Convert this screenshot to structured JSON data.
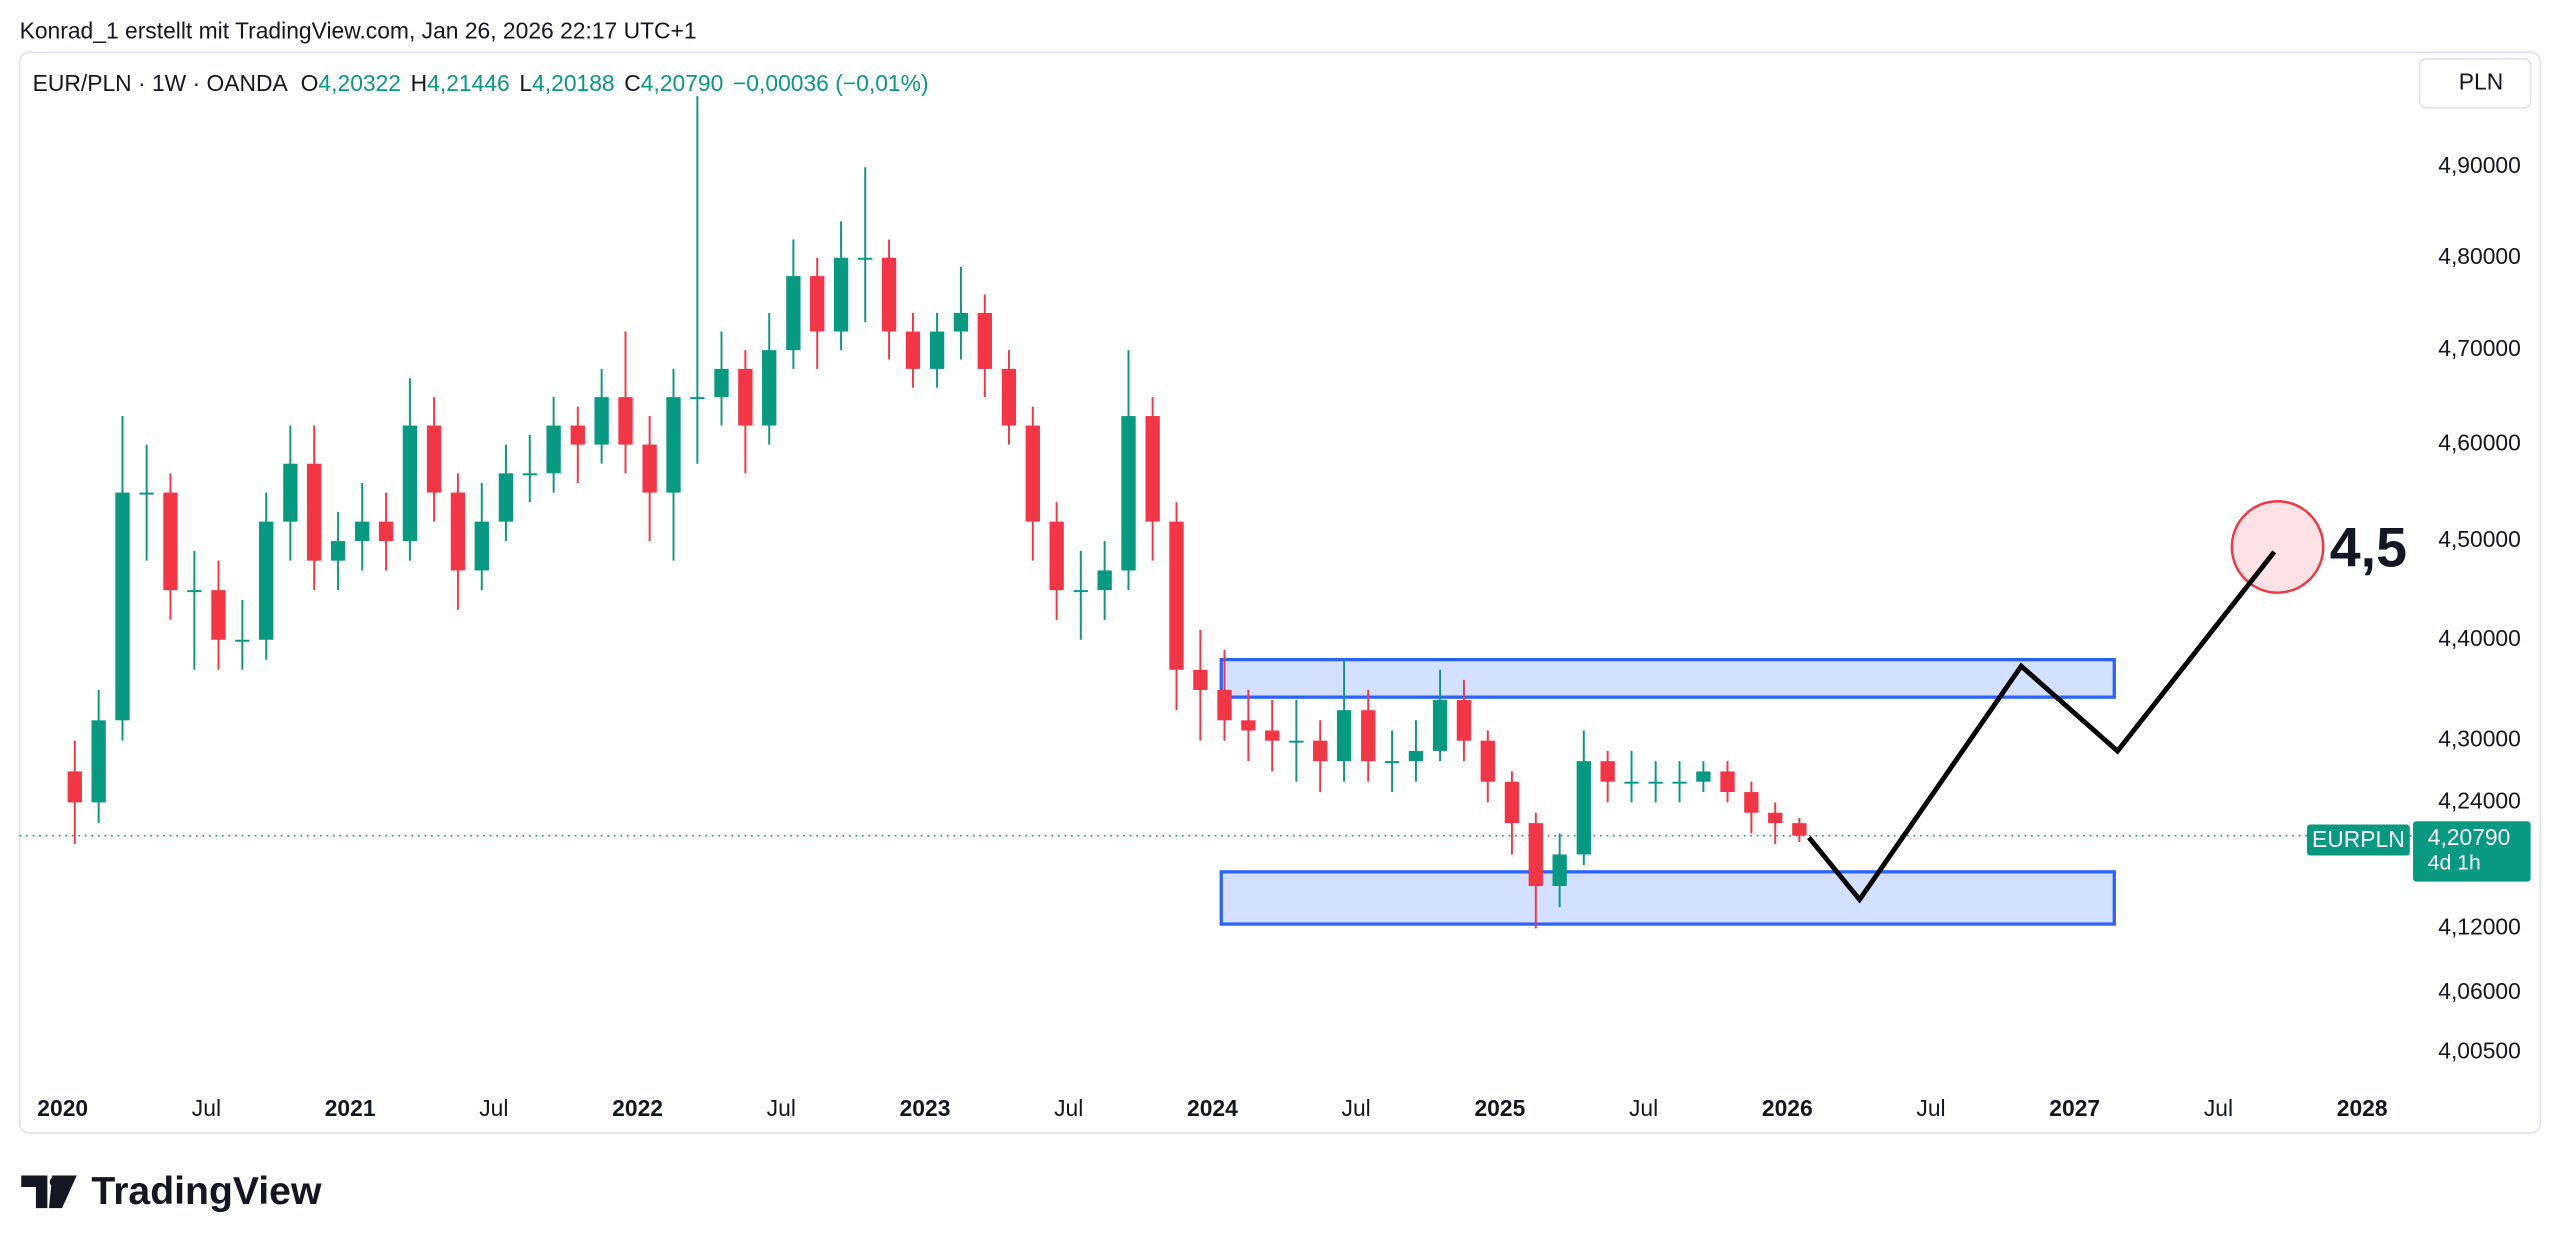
{
  "header": {
    "attribution": "Konrad_1 erstellt mit TradingView.com, Jan 26, 2026 22:17 UTC+1"
  },
  "legend": {
    "symbol": "EUR/PLN · 1W · OANDA",
    "open_label": "O",
    "open": "4,20322",
    "high_label": "H",
    "high": "4,21446",
    "low_label": "L",
    "low": "4,20188",
    "close_label": "C",
    "close": "4,20790",
    "change": "−0,00036 (−0,01%)"
  },
  "currency_button": "PLN",
  "price_tag": {
    "symbol": "EURPLN",
    "price": "4,20790",
    "countdown": "4d 1h"
  },
  "chart_data": {
    "type": "candlestick",
    "log_scale": true,
    "up_color": "#089981",
    "down_color": "#f23645",
    "annotation": "4,5",
    "last_price": 4.2079,
    "xlim": [
      2019.85,
      2028.16
    ],
    "xticks": [
      2020,
      {
        "value": 2020.5,
        "label": "Jul"
      },
      2021,
      {
        "value": 2021.5,
        "label": "Jul"
      },
      2022,
      {
        "value": 2022.5,
        "label": "Jul"
      },
      2023,
      {
        "value": 2023.5,
        "label": "Jul"
      },
      2024,
      {
        "value": 2024.5,
        "label": "Jul"
      },
      2025,
      {
        "value": 2025.5,
        "label": "Jul"
      },
      2026,
      {
        "value": 2026.5,
        "label": "Jul"
      },
      2027,
      {
        "value": 2027.5,
        "label": "Jul"
      },
      2028
    ],
    "ylim": [
      3.975,
      5.03
    ],
    "yticks": [
      {
        "value": 4.9,
        "label": "4,90000"
      },
      {
        "value": 4.8,
        "label": "4,80000"
      },
      {
        "value": 4.7,
        "label": "4,70000"
      },
      {
        "value": 4.6,
        "label": "4,60000"
      },
      {
        "value": 4.5,
        "label": "4,50000"
      },
      {
        "value": 4.4,
        "label": "4,40000"
      },
      {
        "value": 4.3,
        "label": "4,30000"
      },
      {
        "value": 4.24,
        "label": "4,24000"
      },
      {
        "value": 4.12,
        "label": "4,12000"
      },
      {
        "value": 4.06,
        "label": "4,06000"
      },
      {
        "value": 4.005,
        "label": "4,00500"
      }
    ],
    "x": [
      2020.042,
      2020.125,
      2020.208,
      2020.292,
      2020.375,
      2020.458,
      2020.542,
      2020.625,
      2020.708,
      2020.792,
      2020.875,
      2020.958,
      2021.042,
      2021.125,
      2021.208,
      2021.292,
      2021.375,
      2021.458,
      2021.542,
      2021.625,
      2021.708,
      2021.792,
      2021.875,
      2021.958,
      2022.042,
      2022.125,
      2022.208,
      2022.292,
      2022.375,
      2022.458,
      2022.542,
      2022.625,
      2022.708,
      2022.792,
      2022.875,
      2022.958,
      2023.042,
      2023.125,
      2023.208,
      2023.292,
      2023.375,
      2023.458,
      2023.542,
      2023.625,
      2023.708,
      2023.792,
      2023.875,
      2023.958,
      2024.042,
      2024.125,
      2024.208,
      2024.292,
      2024.375,
      2024.458,
      2024.542,
      2024.625,
      2024.708,
      2024.792,
      2024.875,
      2024.958,
      2025.042,
      2025.125,
      2025.208,
      2025.292,
      2025.375,
      2025.458,
      2025.542,
      2025.625,
      2025.708,
      2025.792,
      2025.875,
      2025.958,
      2026.042
    ],
    "open": [
      4.27,
      4.24,
      4.32,
      4.55,
      4.55,
      4.45,
      4.45,
      4.4,
      4.4,
      4.52,
      4.58,
      4.48,
      4.5,
      4.52,
      4.5,
      4.62,
      4.55,
      4.47,
      4.52,
      4.57,
      4.57,
      4.62,
      4.6,
      4.65,
      4.6,
      4.55,
      4.65,
      4.65,
      4.68,
      4.62,
      4.7,
      4.78,
      4.72,
      4.8,
      4.8,
      4.72,
      4.68,
      4.72,
      4.74,
      4.68,
      4.62,
      4.52,
      4.45,
      4.45,
      4.47,
      4.63,
      4.52,
      4.37,
      4.35,
      4.32,
      4.31,
      4.3,
      4.3,
      4.28,
      4.33,
      4.28,
      4.28,
      4.29,
      4.34,
      4.3,
      4.26,
      4.22,
      4.16,
      4.19,
      4.28,
      4.26,
      4.26,
      4.26,
      4.26,
      4.27,
      4.25,
      4.23,
      4.22
    ],
    "high": [
      4.3,
      4.35,
      4.63,
      4.6,
      4.57,
      4.49,
      4.48,
      4.44,
      4.55,
      4.62,
      4.62,
      4.53,
      4.56,
      4.55,
      4.67,
      4.65,
      4.57,
      4.56,
      4.6,
      4.61,
      4.65,
      4.64,
      4.68,
      4.72,
      4.63,
      4.68,
      4.98,
      4.72,
      4.7,
      4.74,
      4.82,
      4.8,
      4.84,
      4.9,
      4.82,
      4.74,
      4.74,
      4.79,
      4.76,
      4.7,
      4.64,
      4.54,
      4.49,
      4.5,
      4.7,
      4.65,
      4.54,
      4.41,
      4.39,
      4.35,
      4.34,
      4.34,
      4.32,
      4.38,
      4.35,
      4.31,
      4.32,
      4.37,
      4.36,
      4.31,
      4.27,
      4.23,
      4.21,
      4.31,
      4.29,
      4.29,
      4.28,
      4.28,
      4.28,
      4.28,
      4.26,
      4.24,
      4.225
    ],
    "low": [
      4.2,
      4.22,
      4.3,
      4.48,
      4.42,
      4.37,
      4.37,
      4.37,
      4.38,
      4.48,
      4.45,
      4.45,
      4.47,
      4.47,
      4.48,
      4.52,
      4.43,
      4.45,
      4.5,
      4.54,
      4.55,
      4.56,
      4.58,
      4.57,
      4.5,
      4.48,
      4.58,
      4.62,
      4.57,
      4.6,
      4.68,
      4.68,
      4.7,
      4.73,
      4.69,
      4.66,
      4.66,
      4.69,
      4.65,
      4.6,
      4.48,
      4.42,
      4.4,
      4.42,
      4.45,
      4.48,
      4.33,
      4.3,
      4.3,
      4.28,
      4.27,
      4.26,
      4.25,
      4.26,
      4.26,
      4.25,
      4.26,
      4.28,
      4.28,
      4.24,
      4.19,
      4.12,
      4.14,
      4.18,
      4.24,
      4.24,
      4.24,
      4.24,
      4.25,
      4.24,
      4.21,
      4.2,
      4.2019
    ],
    "close": [
      4.24,
      4.32,
      4.55,
      4.55,
      4.45,
      4.45,
      4.4,
      4.4,
      4.52,
      4.58,
      4.48,
      4.5,
      4.52,
      4.5,
      4.62,
      4.55,
      4.47,
      4.52,
      4.57,
      4.57,
      4.62,
      4.6,
      4.65,
      4.6,
      4.55,
      4.65,
      4.65,
      4.68,
      4.62,
      4.7,
      4.78,
      4.72,
      4.8,
      4.8,
      4.72,
      4.68,
      4.72,
      4.74,
      4.68,
      4.62,
      4.52,
      4.45,
      4.45,
      4.47,
      4.63,
      4.52,
      4.37,
      4.35,
      4.32,
      4.31,
      4.3,
      4.3,
      4.28,
      4.33,
      4.28,
      4.28,
      4.29,
      4.34,
      4.3,
      4.26,
      4.22,
      4.16,
      4.19,
      4.28,
      4.26,
      4.26,
      4.26,
      4.26,
      4.27,
      4.25,
      4.23,
      4.22,
      4.2079
    ]
  },
  "footer": {
    "brand": "TradingView"
  }
}
